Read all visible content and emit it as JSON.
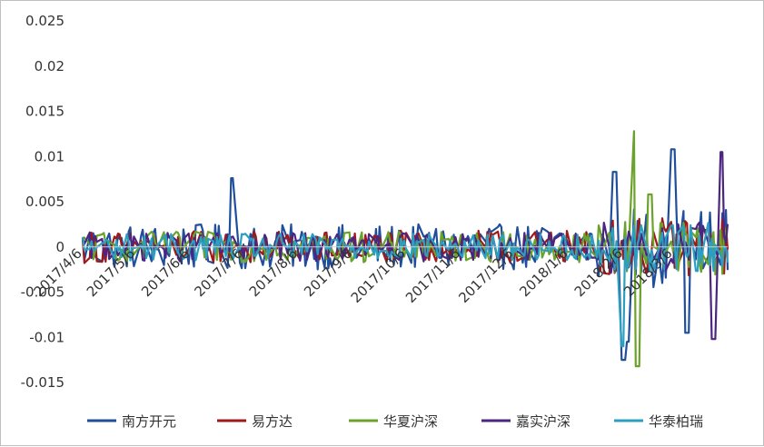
{
  "chart_data": {
    "type": "line",
    "title": "",
    "xlabel": "",
    "ylabel": "",
    "ylim": [
      -0.015,
      0.025
    ],
    "yticks": [
      "0.025",
      "0.02",
      "0.015",
      "0.01",
      "0.005",
      "0",
      "-0.005",
      "-0.01",
      "-0.015"
    ],
    "xticks": [
      "2017/4/6",
      "2017/5/6",
      "2017/6/6",
      "2017/7/6",
      "2017/8/6",
      "2017/9/6",
      "2017/10/6",
      "2017/11/6",
      "2017/12/6",
      "2018/1/6",
      "2018/2/6",
      "2018/3/6"
    ],
    "x_range": [
      "2017/4/6",
      "2018/4/6"
    ],
    "grid": false,
    "legend_position": "bottom",
    "series": [
      {
        "name": "南方开元",
        "color": "#1f4e9c"
      },
      {
        "name": "易方达",
        "color": "#a01818"
      },
      {
        "name": "华夏沪深",
        "color": "#6aa22a"
      },
      {
        "name": "嘉实沪深",
        "color": "#4b2580"
      },
      {
        "name": "华泰柏瑞",
        "color": "#2a9fc0"
      }
    ]
  }
}
